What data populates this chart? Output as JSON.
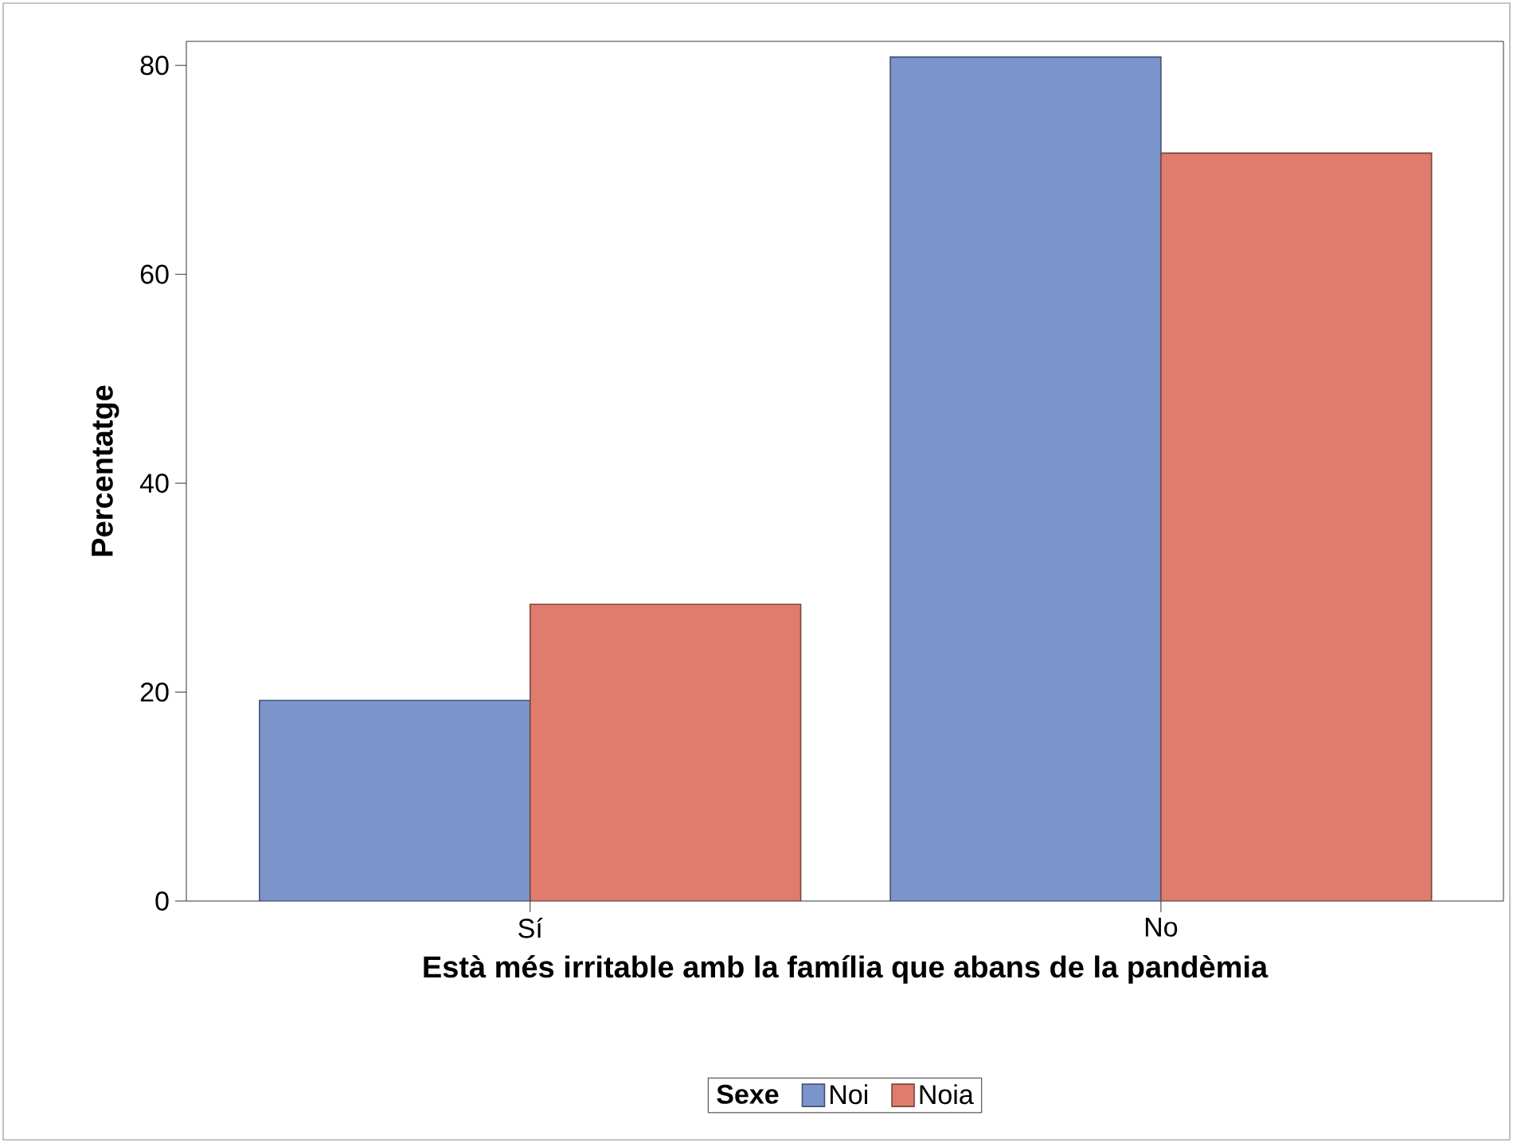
{
  "chart_data": {
    "type": "bar",
    "xlabel": "Està més irritable amb la família que abans de la pandèmia",
    "ylabel": "Percentatge",
    "legend_title": "Sexe",
    "categories": [
      "Sí",
      "No"
    ],
    "series": [
      {
        "name": "Noi",
        "color": "#7b95cc",
        "values": [
          19.2,
          80.8
        ]
      },
      {
        "name": "Noia",
        "color": "#df7c6e",
        "values": [
          28.4,
          71.6
        ]
      }
    ],
    "ylim": [
      0,
      82.3
    ],
    "yticks": [
      0,
      20,
      40,
      60,
      80
    ],
    "legend": "bottom"
  }
}
